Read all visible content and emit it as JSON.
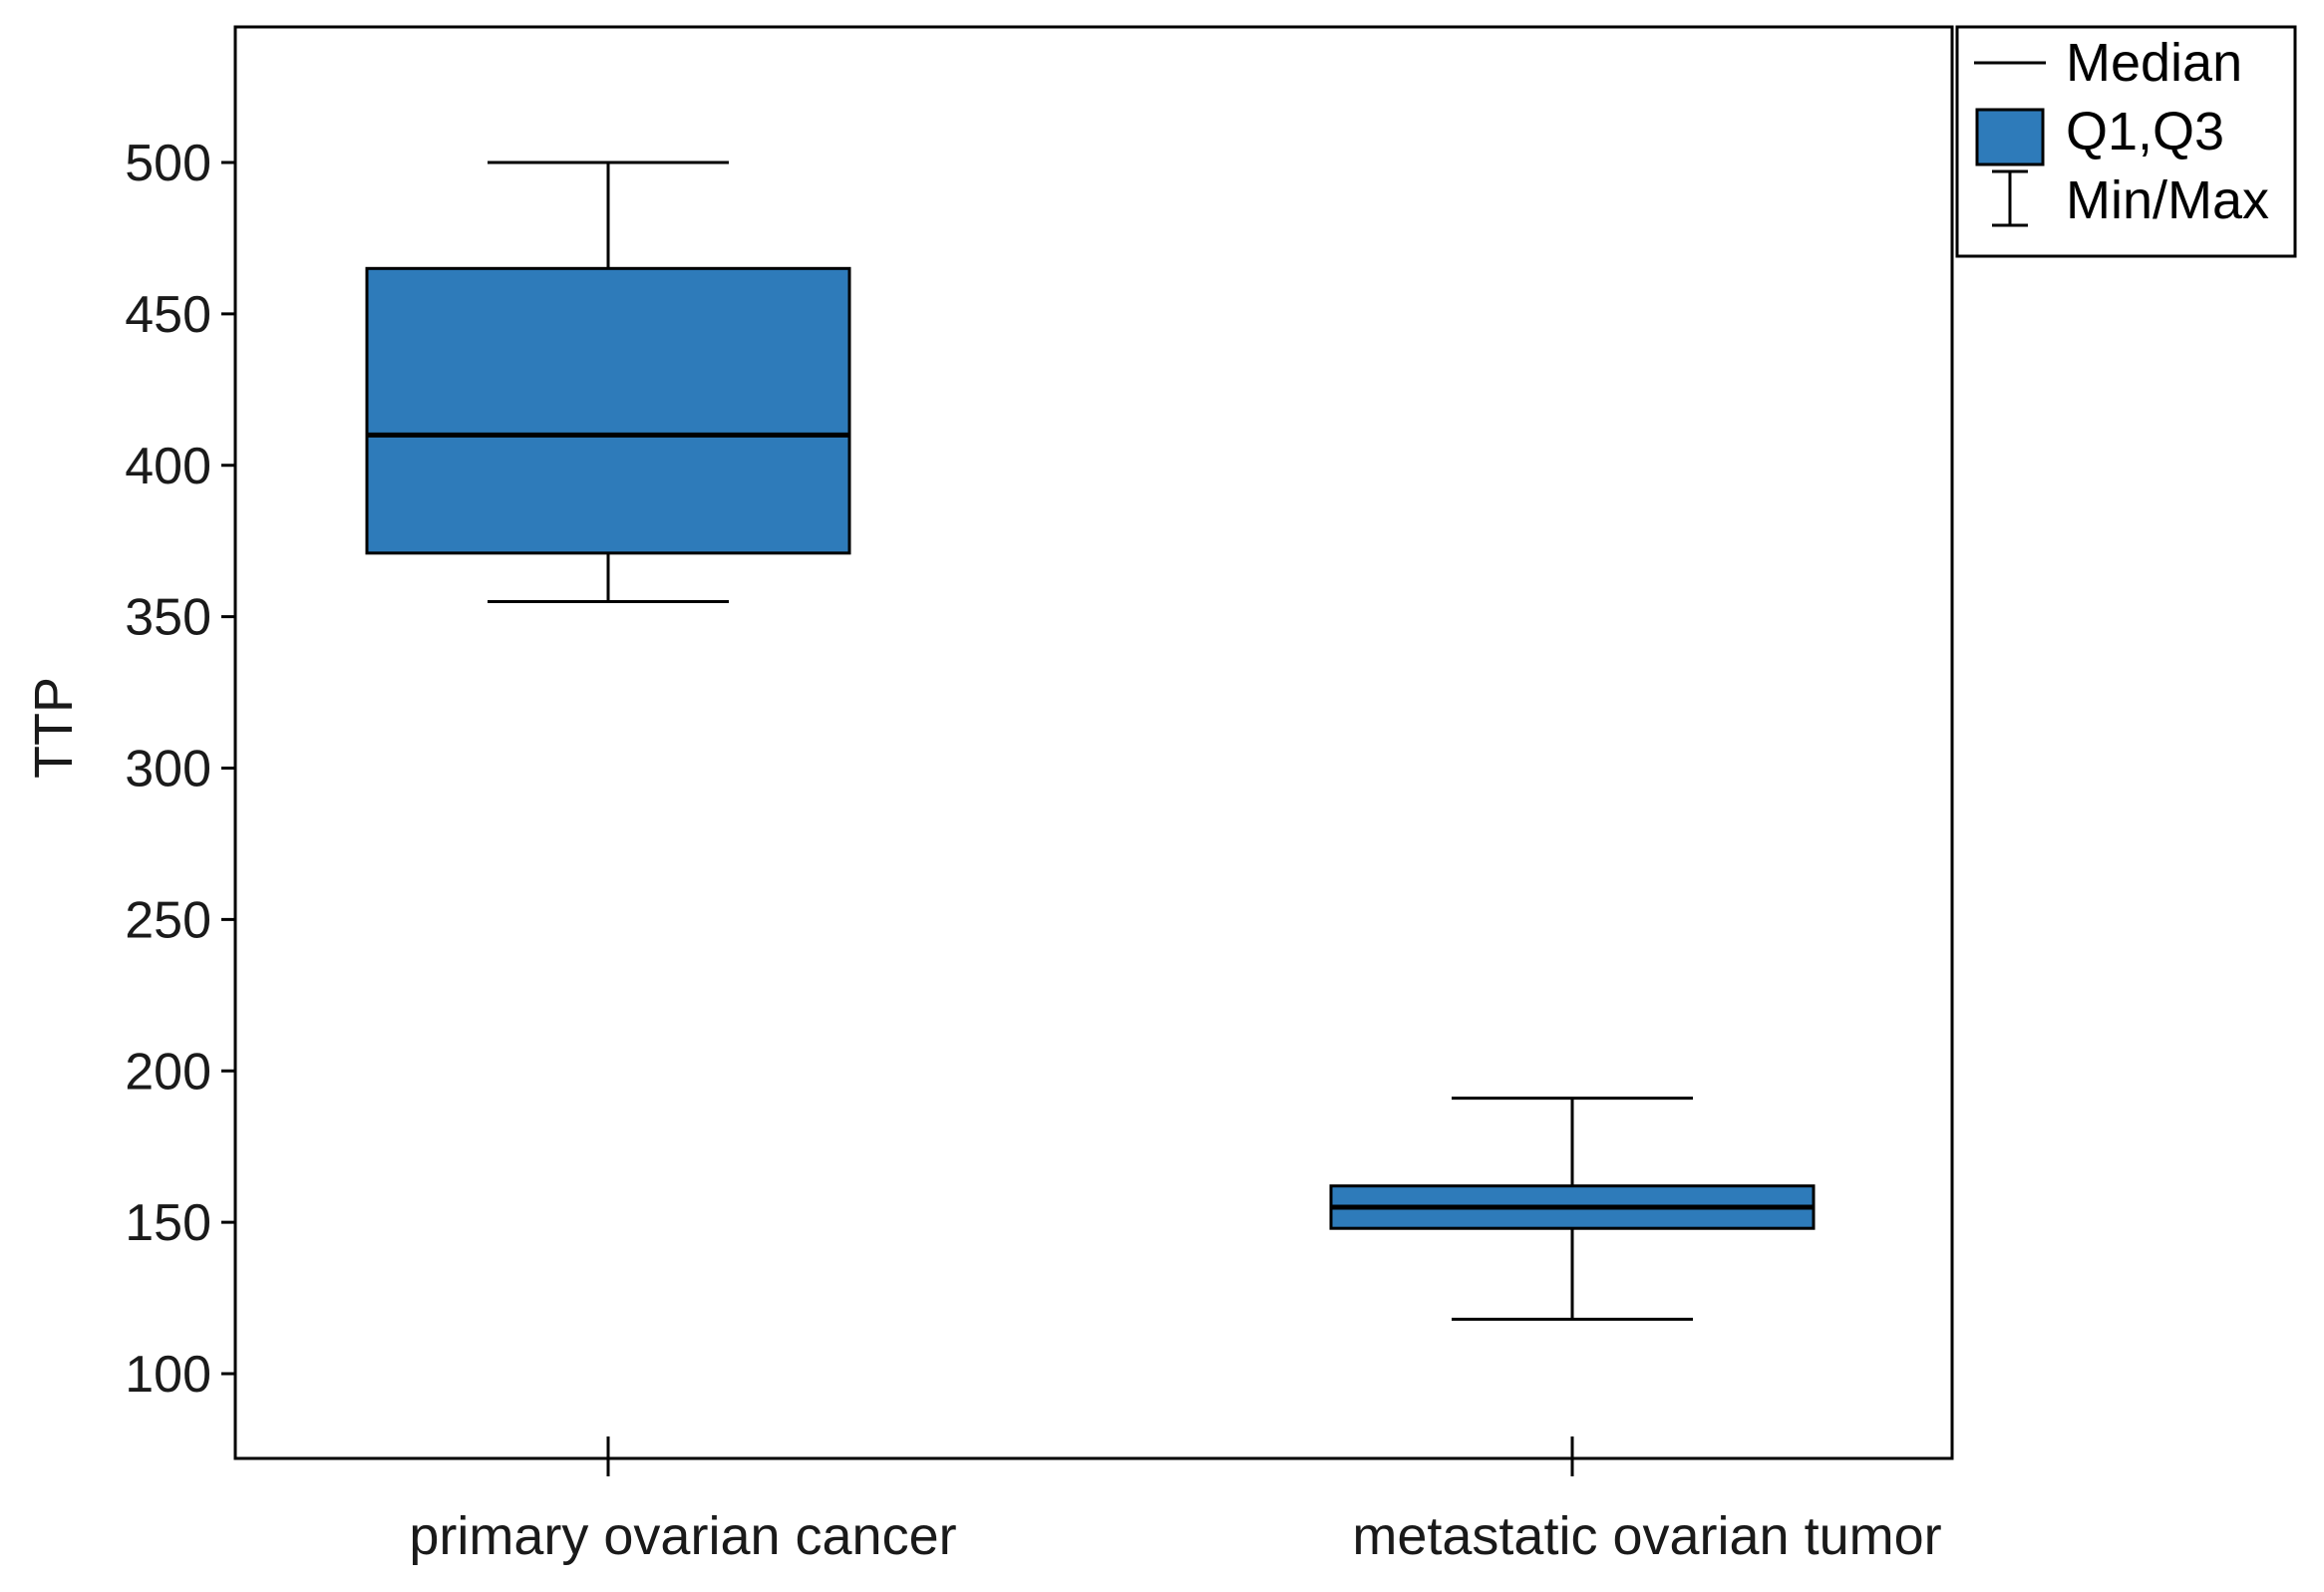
{
  "chart_data": {
    "type": "box",
    "title": "",
    "xlabel": "",
    "ylabel": "TTP",
    "ylim": [
      80,
      540
    ],
    "yticks": [
      100,
      150,
      200,
      250,
      300,
      350,
      400,
      450,
      500
    ],
    "grid": false,
    "legend_position": "top-right, outside plot",
    "categories": [
      "primary ovarian cancer",
      "metastatic ovarian tumor"
    ],
    "boxes": [
      {
        "category": "primary ovarian cancer",
        "min": 355,
        "q1": 371,
        "median": 410,
        "q3": 465,
        "max": 500
      },
      {
        "category": "metastatic ovarian tumor",
        "min": 118,
        "q1": 148,
        "median": 155,
        "q3": 162,
        "max": 191
      }
    ],
    "legend": [
      {
        "label": "Median",
        "symbol": "line"
      },
      {
        "label": "Q1,Q3",
        "symbol": "box"
      },
      {
        "label": "Min/Max",
        "symbol": "whisker"
      }
    ]
  },
  "colors": {
    "box_fill": "#2E7BBA",
    "stroke": "#000000"
  }
}
